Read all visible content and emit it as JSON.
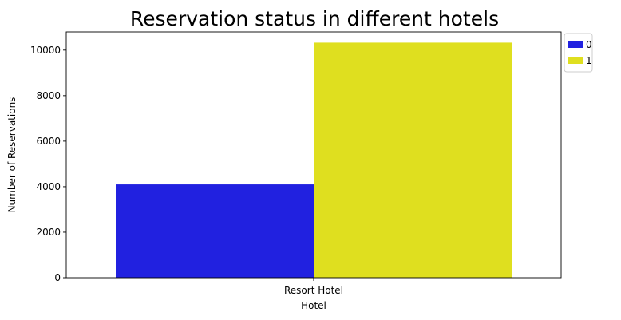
{
  "chart_data": {
    "type": "bar",
    "title": "Reservation status in different hotels",
    "xlabel": "Hotel",
    "ylabel": "Number of Reservations",
    "categories": [
      "Resort Hotel"
    ],
    "series": [
      {
        "name": "0",
        "values": [
          4100
        ],
        "color": "#2121e0"
      },
      {
        "name": "1",
        "values": [
          10330
        ],
        "color": "#dfdf1f"
      }
    ],
    "ylim": [
      0,
      10800
    ],
    "yticks": [
      0,
      2000,
      4000,
      6000,
      8000,
      10000
    ],
    "grid": false,
    "legend_position": "outside-top-right"
  }
}
